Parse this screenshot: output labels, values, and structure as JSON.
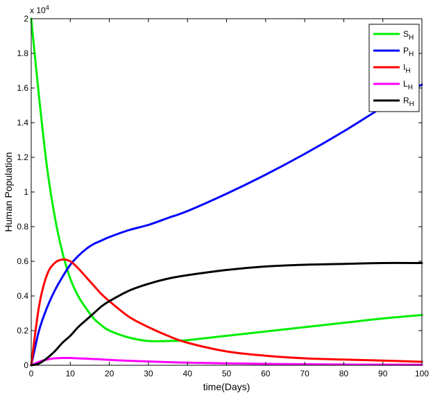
{
  "chart_data": {
    "type": "line",
    "xlabel": "time(Days)",
    "ylabel": "Human Population",
    "xlim": [
      0,
      100
    ],
    "ylim": [
      0,
      20000
    ],
    "y_exponent_label": "x 10",
    "y_exponent_power": "4",
    "x_ticks": [
      0,
      10,
      20,
      30,
      40,
      50,
      60,
      70,
      80,
      90,
      100
    ],
    "x_tick_labels": [
      "0",
      "10",
      "20",
      "30",
      "40",
      "50",
      "60",
      "70",
      "80",
      "90",
      "100"
    ],
    "y_ticks": [
      0,
      2000,
      4000,
      6000,
      8000,
      10000,
      12000,
      14000,
      16000,
      18000,
      20000
    ],
    "y_tick_labels": [
      "0",
      "0.2",
      "0.4",
      "0.6",
      "0.8",
      "1",
      "1.2",
      "1.4",
      "1.6",
      "1.8",
      "2"
    ],
    "grid": false,
    "legend_position": "top-right",
    "x": [
      0,
      2,
      4,
      6,
      8,
      10,
      12,
      14,
      16,
      18,
      20,
      25,
      30,
      35,
      40,
      50,
      60,
      70,
      80,
      90,
      100
    ],
    "series": [
      {
        "name": "S",
        "subscript": "H",
        "color": "#00ee00",
        "values": [
          20000,
          15500,
          11500,
          8600,
          6500,
          5000,
          4000,
          3300,
          2700,
          2300,
          2000,
          1600,
          1400,
          1400,
          1450,
          1700,
          1950,
          2200,
          2450,
          2700,
          2900
        ]
      },
      {
        "name": "P",
        "subscript": "H",
        "color": "#0000ff",
        "values": [
          0,
          2000,
          3300,
          4300,
          5100,
          5800,
          6300,
          6700,
          7000,
          7200,
          7400,
          7800,
          8100,
          8500,
          8900,
          9900,
          11000,
          12200,
          13500,
          14900,
          16200
        ]
      },
      {
        "name": "I",
        "subscript": "H",
        "color": "#ff0000",
        "values": [
          0,
          3400,
          5200,
          5900,
          6100,
          6000,
          5600,
          5100,
          4600,
          4100,
          3700,
          2800,
          2200,
          1700,
          1300,
          800,
          550,
          400,
          330,
          270,
          200
        ]
      },
      {
        "name": "L",
        "subscript": "H",
        "color": "#ff00ff",
        "values": [
          0,
          200,
          330,
          400,
          420,
          420,
          400,
          380,
          360,
          340,
          310,
          260,
          220,
          180,
          150,
          110,
          80,
          60,
          45,
          35,
          30
        ]
      },
      {
        "name": "R",
        "subscript": "H",
        "color": "#000000",
        "values": [
          0,
          100,
          400,
          800,
          1300,
          1700,
          2200,
          2600,
          3000,
          3400,
          3700,
          4300,
          4700,
          5000,
          5200,
          5500,
          5700,
          5800,
          5850,
          5900,
          5900
        ]
      }
    ]
  }
}
